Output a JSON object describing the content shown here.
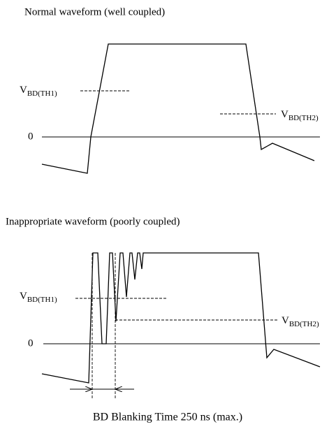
{
  "top": {
    "title": "Normal waveform (well coupled)",
    "zero_label": "0",
    "threshold_1": {
      "symbol": "V",
      "subscript": "BD(TH1)"
    },
    "threshold_2": {
      "symbol": "V",
      "subscript": "BD(TH2)"
    }
  },
  "bottom": {
    "title": "Inappropriate waveform (poorly coupled)",
    "zero_label": "0",
    "threshold_1": {
      "symbol": "V",
      "subscript": "BD(TH1)"
    },
    "threshold_2": {
      "symbol": "V",
      "subscript": "BD(TH2)"
    },
    "caption": "BD Blanking Time 250 ns (max.)"
  }
}
